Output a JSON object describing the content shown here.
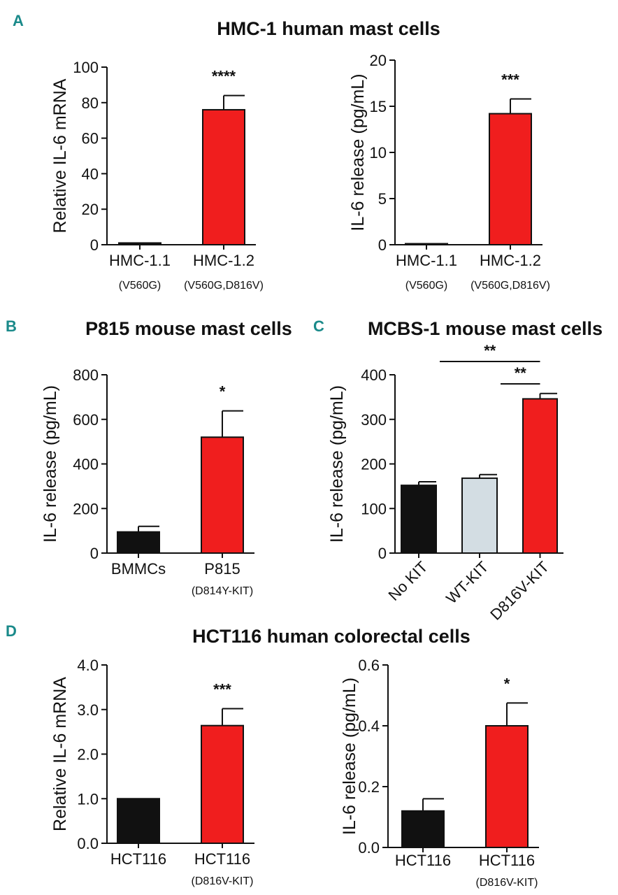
{
  "panel_letters": [
    "A",
    "B",
    "C",
    "D"
  ],
  "headings": {
    "a": "HMC-1 human mast cells",
    "b": "P815 mouse mast cells",
    "c": "MCBS-1 mouse mast cells",
    "d": "HCT116  human colorectal cells"
  },
  "colors": {
    "black": "#111111",
    "red": "#f01e1e",
    "grey": "#d3dde3"
  },
  "chart_data": [
    {
      "id": "A-left",
      "type": "bar",
      "ylabel": "Relative IL-6 mRNA",
      "ylim": [
        0,
        100
      ],
      "yticks": [
        "0",
        "20",
        "40",
        "60",
        "80",
        "100"
      ],
      "categories": [
        "HMC-1.1",
        "HMC-1.2"
      ],
      "sublabels": [
        "(V560G)",
        "(V560G,D816V)"
      ],
      "values": [
        1,
        76
      ],
      "errors": [
        0,
        8
      ],
      "colors": [
        "black",
        "red"
      ],
      "significance": [
        "",
        "****"
      ]
    },
    {
      "id": "A-right",
      "type": "bar",
      "ylabel": "IL-6 release (pg/mL)",
      "ylim": [
        0,
        20
      ],
      "yticks": [
        "0",
        "5",
        "10",
        "15",
        "20"
      ],
      "categories": [
        "HMC-1.1",
        "HMC-1.2"
      ],
      "sublabels": [
        "(V560G)",
        "(V560G,D816V)"
      ],
      "values": [
        0.1,
        14.2
      ],
      "errors": [
        0,
        1.6
      ],
      "colors": [
        "black",
        "red"
      ],
      "significance": [
        "",
        "***"
      ]
    },
    {
      "id": "B",
      "type": "bar",
      "ylabel": "IL-6 release (pg/mL)",
      "ylim": [
        0,
        800
      ],
      "yticks": [
        "0",
        "200",
        "400",
        "600",
        "800"
      ],
      "categories": [
        "BMMCs",
        "P815"
      ],
      "sublabels": [
        "",
        "(D814Y-KIT)"
      ],
      "values": [
        95,
        520
      ],
      "errors": [
        25,
        118
      ],
      "colors": [
        "black",
        "red"
      ],
      "significance": [
        "",
        "*"
      ]
    },
    {
      "id": "C",
      "type": "bar",
      "ylabel": "IL-6 release (pg/mL)",
      "ylim": [
        0,
        400
      ],
      "yticks": [
        "0",
        "100",
        "200",
        "300",
        "400"
      ],
      "categories": [
        "No KIT",
        "WT-KIT",
        "D816V-KIT"
      ],
      "rotated_labels": true,
      "values": [
        152,
        168,
        346
      ],
      "errors": [
        8,
        8,
        12
      ],
      "colors": [
        "black",
        "grey",
        "red"
      ],
      "brackets": [
        {
          "from": 0,
          "to": 2,
          "label": "**"
        },
        {
          "from": 1,
          "to": 2,
          "label": "**"
        }
      ]
    },
    {
      "id": "D-left",
      "type": "bar",
      "ylabel": "Relative IL-6 mRNA",
      "ylim": [
        0,
        4.0
      ],
      "yticks": [
        "0.0",
        "1.0",
        "2.0",
        "3.0",
        "4.0"
      ],
      "categories": [
        "HCT116",
        "HCT116"
      ],
      "sublabels": [
        "",
        "(D816V-KIT)"
      ],
      "values": [
        1.0,
        2.64
      ],
      "errors": [
        0,
        0.38
      ],
      "colors": [
        "black",
        "red"
      ],
      "significance": [
        "",
        "***"
      ]
    },
    {
      "id": "D-right",
      "type": "bar",
      "ylabel": "IL-6 release (pg/mL)",
      "ylim": [
        0,
        0.6
      ],
      "yticks": [
        "0.0",
        "0.2",
        "0.4",
        "0.6"
      ],
      "categories": [
        "HCT116",
        "HCT116"
      ],
      "sublabels": [
        "",
        "(D816V-KIT)"
      ],
      "values": [
        0.12,
        0.4
      ],
      "errors": [
        0.04,
        0.075
      ],
      "colors": [
        "black",
        "red"
      ],
      "significance": [
        "",
        "*"
      ]
    }
  ]
}
